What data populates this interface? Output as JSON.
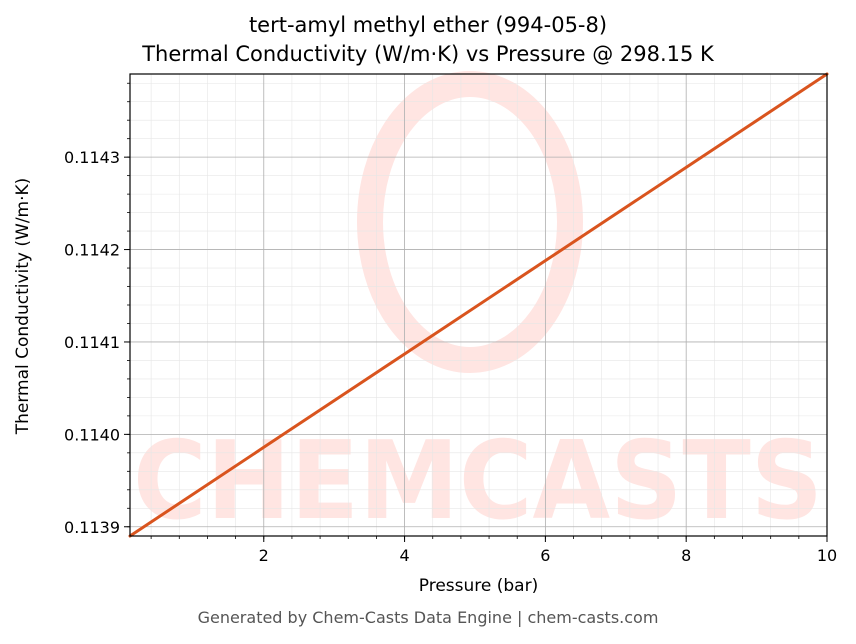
{
  "chart_data": {
    "type": "line",
    "title": "tert-amyl methyl ether (994-05-8)",
    "subtitle": "Thermal Conductivity (W/m·K) vs Pressure @ 298.15 K",
    "xlabel": "Pressure (bar)",
    "ylabel": "Thermal Conductivity (W/m·K)",
    "xlim": [
      0.1,
      10
    ],
    "ylim": [
      0.11389,
      0.11439
    ],
    "x_ticks": [
      2,
      4,
      6,
      8,
      10
    ],
    "x_tick_labels": [
      "2",
      "4",
      "6",
      "8",
      "10"
    ],
    "y_ticks": [
      0.1139,
      0.114,
      0.1141,
      0.1142,
      0.1143
    ],
    "y_tick_labels": [
      "0.1139",
      "0.1140",
      "0.1141",
      "0.1142",
      "0.1143"
    ],
    "grid": true,
    "series": [
      {
        "color": "#d9541e",
        "x": [
          0.1,
          2,
          4,
          6,
          8,
          10
        ],
        "y": [
          0.11389,
          0.113986,
          0.114087,
          0.114188,
          0.114289,
          0.11439
        ]
      }
    ]
  },
  "watermark": {
    "text": "CHEMCASTS",
    "color": "#ffe5e2"
  },
  "footer": "Generated by Chem-Casts Data Engine | chem-casts.com"
}
